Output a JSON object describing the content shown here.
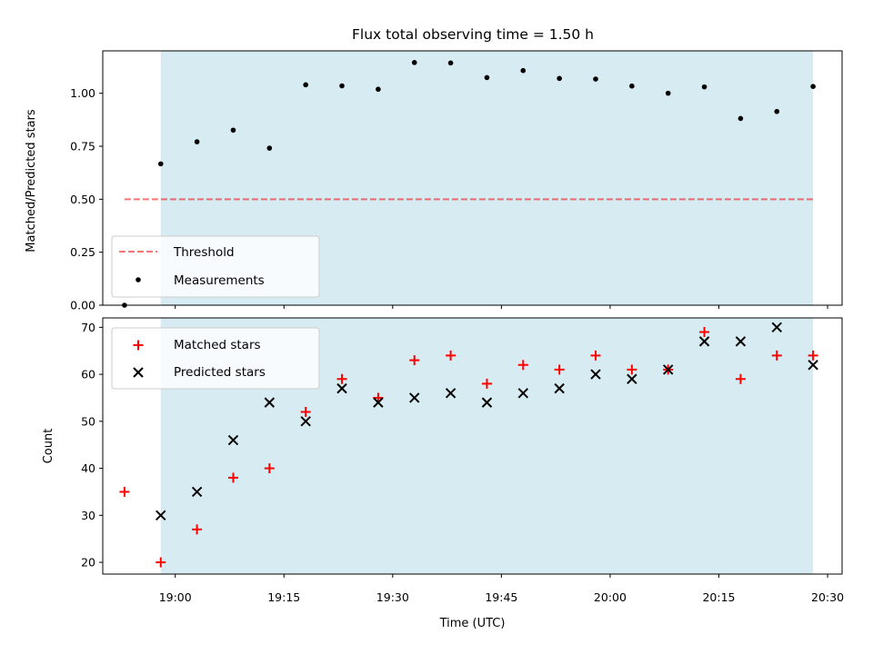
{
  "chart_data": [
    {
      "type": "scatter",
      "title": "Flux total observing time = 1.50 h",
      "xlabel": "",
      "ylabel": "Matched/Predicted stars",
      "xlim": [
        "18:50",
        "20:32"
      ],
      "ylim": [
        0,
        1.2
      ],
      "yticks": [
        "0.00",
        "0.25",
        "0.50",
        "0.75",
        "1.00"
      ],
      "grid": false,
      "legend_position": "bottom-left",
      "shaded_span": {
        "start": "18:58",
        "end": "20:28",
        "color": "#add8e6"
      },
      "threshold": {
        "name": "Threshold",
        "value": 0.5,
        "start": "18:53",
        "end": "20:28",
        "color": "#ff0000"
      },
      "series": [
        {
          "name": "Measurements",
          "marker": "dot",
          "color": "#000000",
          "x": [
            "18:53",
            "18:58",
            "19:03",
            "19:08",
            "19:13",
            "19:18",
            "19:23",
            "19:28",
            "19:33",
            "19:38",
            "19:43",
            "19:48",
            "19:53",
            "19:58",
            "20:03",
            "20:08",
            "20:13",
            "20:18",
            "20:23",
            "20:28"
          ],
          "y": [
            0.0,
            0.667,
            0.771,
            0.826,
            0.741,
            1.04,
            1.035,
            1.019,
            1.145,
            1.143,
            1.074,
            1.107,
            1.07,
            1.067,
            1.034,
            1.0,
            1.03,
            0.881,
            0.914,
            1.032
          ]
        }
      ]
    },
    {
      "type": "scatter",
      "title": "",
      "xlabel": "Time (UTC)",
      "ylabel": "Count",
      "xlim": [
        "18:50",
        "20:32"
      ],
      "ylim": [
        17.5,
        72
      ],
      "xticks": [
        "19:00",
        "19:15",
        "19:30",
        "19:45",
        "20:00",
        "20:15",
        "20:30"
      ],
      "yticks": [
        "20",
        "30",
        "40",
        "50",
        "60",
        "70"
      ],
      "grid": false,
      "legend_position": "top-left",
      "shaded_span": {
        "start": "18:58",
        "end": "20:28",
        "color": "#add8e6"
      },
      "series": [
        {
          "name": "Matched stars",
          "marker": "plus",
          "color": "#ff0000",
          "x": [
            "18:53",
            "18:58",
            "19:03",
            "19:08",
            "19:13",
            "19:18",
            "19:23",
            "19:28",
            "19:33",
            "19:38",
            "19:43",
            "19:48",
            "19:53",
            "19:58",
            "20:03",
            "20:08",
            "20:13",
            "20:18",
            "20:23",
            "20:28"
          ],
          "y": [
            35,
            20,
            27,
            38,
            40,
            52,
            59,
            55,
            63,
            64,
            58,
            62,
            61,
            64,
            61,
            61,
            69,
            59,
            64,
            64
          ]
        },
        {
          "name": "Predicted stars",
          "marker": "x",
          "color": "#000000",
          "x": [
            "18:58",
            "19:03",
            "19:08",
            "19:13",
            "19:18",
            "19:23",
            "19:28",
            "19:33",
            "19:38",
            "19:43",
            "19:48",
            "19:53",
            "19:58",
            "20:03",
            "20:08",
            "20:13",
            "20:18",
            "20:23",
            "20:28"
          ],
          "y": [
            30,
            35,
            46,
            54,
            50,
            57,
            54,
            55,
            56,
            54,
            56,
            57,
            60,
            59,
            61,
            67,
            67,
            70,
            62
          ]
        }
      ]
    }
  ]
}
